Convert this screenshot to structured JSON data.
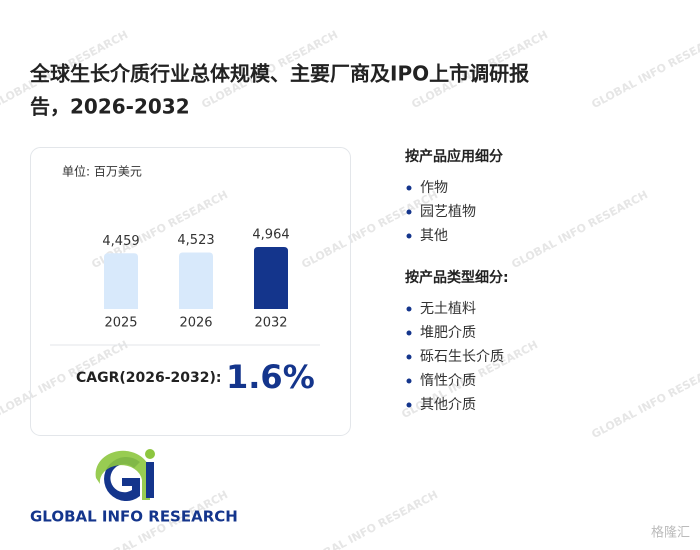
{
  "header": {
    "title_line1": "全球生长介质行业总体规模、主要厂商及IPO上市调研报",
    "title_line2": "告，2026-2032"
  },
  "chart_data": {
    "type": "bar",
    "unit": "单位: 百万美元",
    "categories": [
      "2025",
      "2026",
      "2032"
    ],
    "values": [
      4459,
      4523,
      4964
    ],
    "value_labels": [
      "4,459",
      "4,523",
      "4,964"
    ],
    "colors": [
      "#d8e9fb",
      "#d8e9fb",
      "#14358c"
    ],
    "ylim": [
      0,
      5000
    ]
  },
  "cagr": {
    "label": "CAGR(2026-2032):",
    "value": "1.6%"
  },
  "segments": [
    {
      "heading": "按产品应用细分",
      "items": [
        "作物",
        "园艺植物",
        "其他"
      ]
    },
    {
      "heading": "按产品类型细分:",
      "items": [
        "无土植料",
        "堆肥介质",
        "砾石生长介质",
        "惰性介质",
        "其他介质"
      ]
    }
  ],
  "logo": {
    "text": "GLOBAL INFO RESEARCH"
  },
  "watermark": {
    "text": "GLOBAL INFO RESEARCH",
    "corner": "格隆汇"
  }
}
